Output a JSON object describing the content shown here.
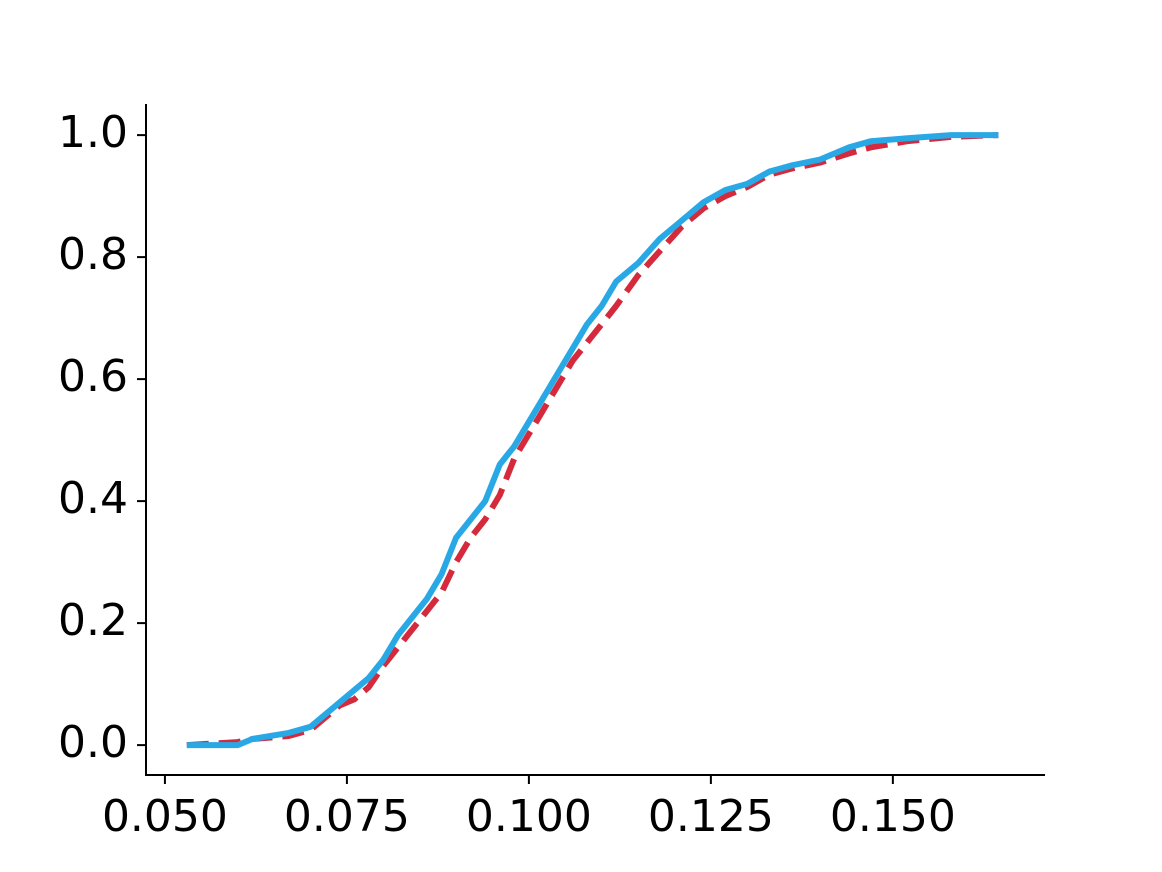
{
  "chart_data": {
    "type": "line",
    "x": [
      0.053,
      0.06,
      0.062,
      0.067,
      0.07,
      0.072,
      0.074,
      0.076,
      0.078,
      0.08,
      0.082,
      0.084,
      0.086,
      0.088,
      0.09,
      0.092,
      0.094,
      0.096,
      0.098,
      0.1,
      0.102,
      0.104,
      0.106,
      0.108,
      0.11,
      0.112,
      0.115,
      0.118,
      0.121,
      0.124,
      0.127,
      0.13,
      0.133,
      0.136,
      0.14,
      0.144,
      0.147,
      0.152,
      0.158,
      0.1645
    ],
    "series": [
      {
        "color": "#29a8e6",
        "dash": false,
        "values": [
          0,
          0,
          0.01,
          0.02,
          0.03,
          0.05,
          0.07,
          0.09,
          0.11,
          0.14,
          0.18,
          0.21,
          0.24,
          0.28,
          0.34,
          0.37,
          0.4,
          0.46,
          0.49,
          0.53,
          0.57,
          0.61,
          0.65,
          0.69,
          0.72,
          0.76,
          0.79,
          0.83,
          0.86,
          0.89,
          0.91,
          0.92,
          0.94,
          0.95,
          0.96,
          0.98,
          0.99,
          0.995,
          1.0,
          1.0
        ]
      },
      {
        "color": "#d42a3c",
        "dash": true,
        "values": [
          0,
          0.005,
          0.01,
          0.015,
          0.025,
          0.045,
          0.065,
          0.075,
          0.095,
          0.13,
          0.16,
          0.19,
          0.22,
          0.25,
          0.3,
          0.34,
          0.37,
          0.41,
          0.47,
          0.51,
          0.55,
          0.59,
          0.63,
          0.66,
          0.69,
          0.72,
          0.77,
          0.81,
          0.85,
          0.88,
          0.9,
          0.915,
          0.935,
          0.945,
          0.955,
          0.97,
          0.98,
          0.99,
          0.997,
          1.0
        ]
      }
    ],
    "xlim": [
      0.0474,
      0.1709
    ],
    "ylim": [
      -0.049,
      1.051
    ],
    "xticks": [
      {
        "value": 0.05,
        "label": "0.050"
      },
      {
        "value": 0.075,
        "label": "0.075"
      },
      {
        "value": 0.1,
        "label": "0.100"
      },
      {
        "value": 0.125,
        "label": "0.125"
      },
      {
        "value": 0.15,
        "label": "0.150"
      }
    ],
    "yticks": [
      {
        "value": 0,
        "label": "0.0"
      },
      {
        "value": 0.2,
        "label": "0.2"
      },
      {
        "value": 0.4,
        "label": "0.4"
      },
      {
        "value": 0.6,
        "label": "0.6"
      },
      {
        "value": 0.8,
        "label": "0.8"
      },
      {
        "value": 1,
        "label": "1.0"
      }
    ],
    "grid": false
  }
}
